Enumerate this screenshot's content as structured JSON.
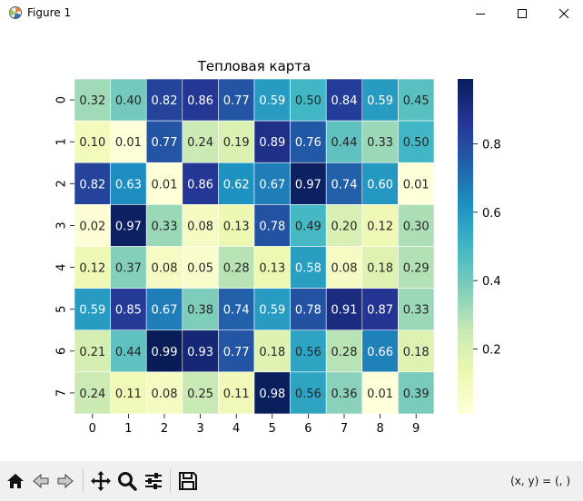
{
  "window": {
    "title": "Figure 1",
    "minimize_icon": "minimize-icon",
    "maximize_icon": "maximize-icon",
    "close_icon": "close-icon"
  },
  "toolbar": {
    "icons": [
      "home-icon",
      "back-icon",
      "forward-icon",
      "pan-icon",
      "zoom-icon",
      "configure-subplots-icon",
      "save-icon"
    ],
    "coords_text": "(x, y) = (, )"
  },
  "chart_data": {
    "type": "heatmap",
    "title": "Тепловая карта",
    "x_ticks": [
      "0",
      "1",
      "2",
      "3",
      "4",
      "5",
      "6",
      "7",
      "8",
      "9"
    ],
    "y_ticks": [
      "0",
      "1",
      "2",
      "3",
      "4",
      "5",
      "6",
      "7"
    ],
    "values": [
      [
        0.32,
        0.4,
        0.82,
        0.86,
        0.77,
        0.59,
        0.5,
        0.84,
        0.59,
        0.45
      ],
      [
        0.1,
        0.01,
        0.77,
        0.24,
        0.19,
        0.89,
        0.76,
        0.44,
        0.33,
        0.5
      ],
      [
        0.82,
        0.63,
        0.01,
        0.86,
        0.62,
        0.67,
        0.97,
        0.74,
        0.6,
        0.01
      ],
      [
        0.02,
        0.97,
        0.33,
        0.08,
        0.13,
        0.78,
        0.49,
        0.2,
        0.12,
        0.3
      ],
      [
        0.12,
        0.37,
        0.08,
        0.05,
        0.28,
        0.13,
        0.58,
        0.08,
        0.18,
        0.29
      ],
      [
        0.59,
        0.85,
        0.67,
        0.38,
        0.74,
        0.59,
        0.78,
        0.91,
        0.87,
        0.33
      ],
      [
        0.21,
        0.44,
        0.99,
        0.93,
        0.77,
        0.18,
        0.56,
        0.28,
        0.66,
        0.18
      ],
      [
        0.24,
        0.11,
        0.08,
        0.25,
        0.11,
        0.98,
        0.56,
        0.36,
        0.01,
        0.39
      ]
    ],
    "colormap": "YlGnBu",
    "vmin": 0.01,
    "vmax": 0.99,
    "annotations": true,
    "colorbar": {
      "ticks": [
        0.2,
        0.4,
        0.6,
        0.8
      ],
      "tick_labels": [
        "0.2",
        "0.4",
        "0.6",
        "0.8"
      ]
    }
  }
}
